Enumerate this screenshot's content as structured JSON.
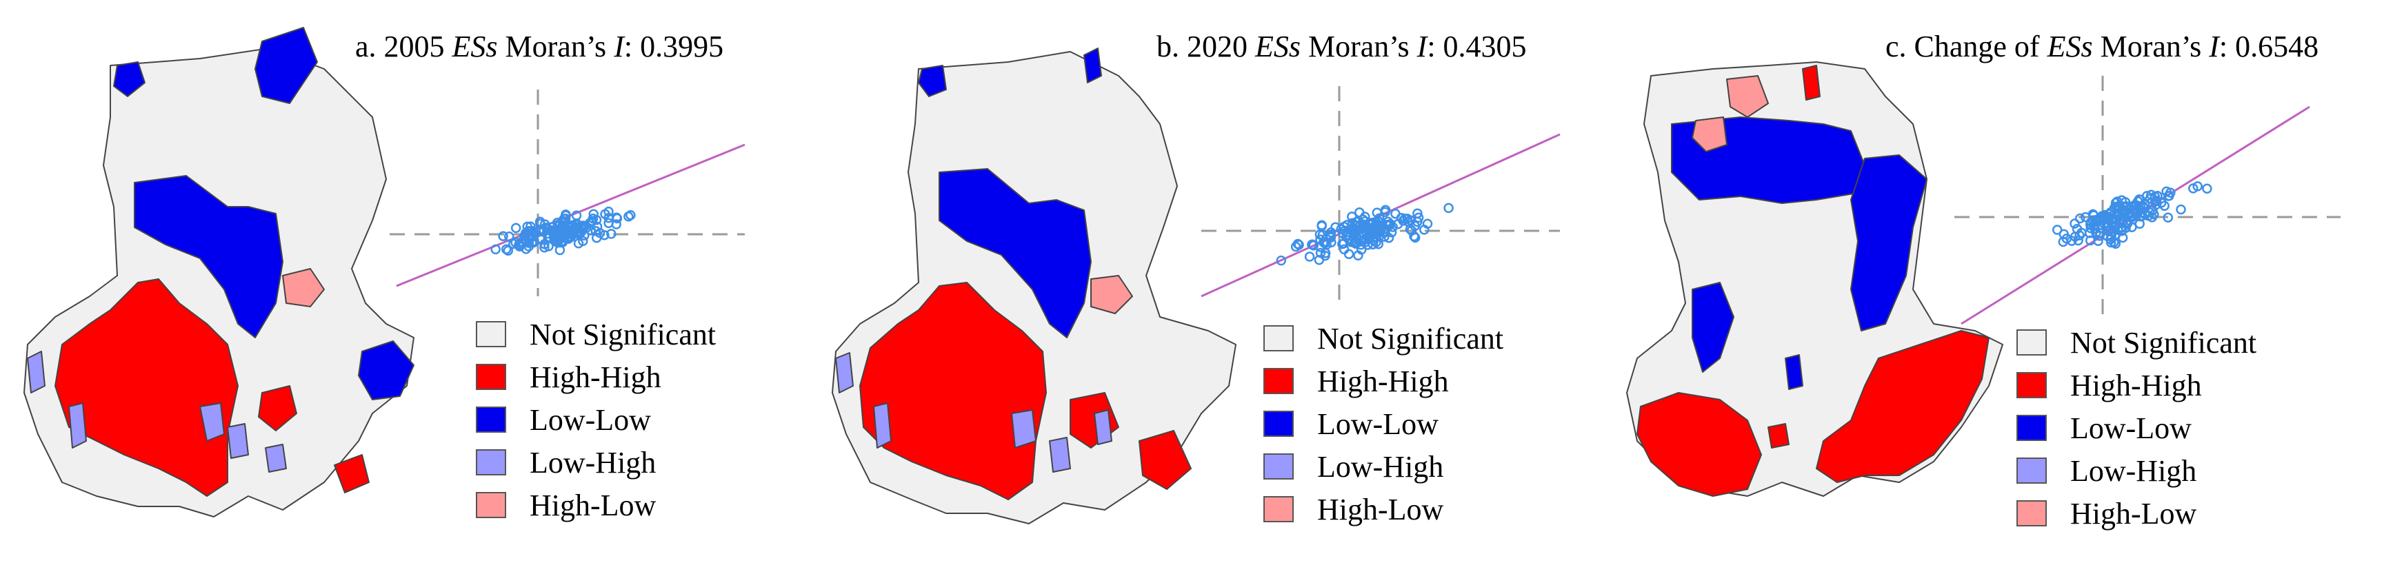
{
  "colors": {
    "not_significant": "#f0f0f0",
    "high_high": "#ff0000",
    "low_low": "#0000ee",
    "low_high": "#9999ff",
    "high_low": "#ff9999",
    "border": "#444444",
    "point": "#3d8fe8",
    "regression": "#c060c0",
    "axis": "#9a9a9a"
  },
  "legend_items": [
    {
      "label": "Not Significant",
      "color_key": "not_significant"
    },
    {
      "label": "High-High",
      "color_key": "high_high"
    },
    {
      "label": "Low-Low",
      "color_key": "low_low"
    },
    {
      "label": "Low-High",
      "color_key": "low_high"
    },
    {
      "label": "High-Low",
      "color_key": "high_low"
    }
  ],
  "panels": [
    {
      "prefix": "a. 2005 ",
      "italic": "ESs",
      "mid": " Moran’s ",
      "italic2": "I",
      "suffix": ": 0.3995"
    },
    {
      "prefix": "b. 2020 ",
      "italic": "ESs",
      "mid": " Moran’s ",
      "italic2": "I",
      "suffix": ": 0.4305"
    },
    {
      "prefix": "c. Change of ",
      "italic": "ESs",
      "mid": " Moran’s ",
      "italic2": "I",
      "suffix": ": 0.6548"
    }
  ]
}
